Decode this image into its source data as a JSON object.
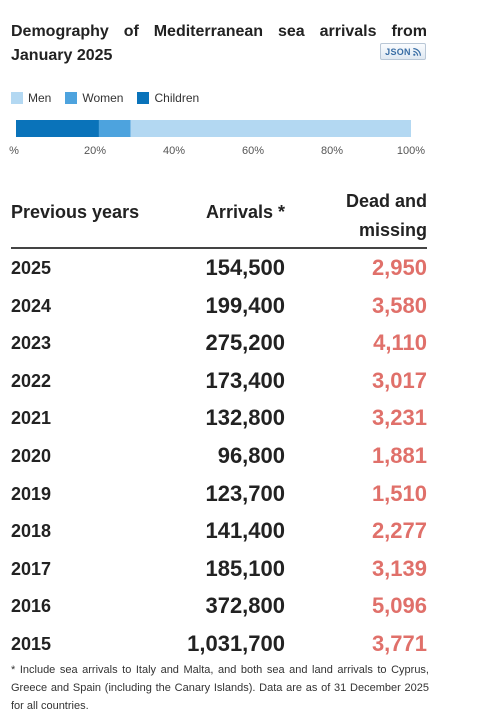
{
  "title": "Demography of Mediterranean sea arrivals from January 2025",
  "json_button_label": "JSON",
  "chart_data": {
    "type": "bar",
    "stacked": true,
    "orientation": "horizontal",
    "series": [
      {
        "name": "Children",
        "color": "#0a73ba",
        "value": 21
      },
      {
        "name": "Women",
        "color": "#4da3de",
        "value": 8
      },
      {
        "name": "Men",
        "color": "#b3d8f2",
        "value": 71
      }
    ],
    "legend": [
      "Men",
      "Women",
      "Children"
    ],
    "legend_placement": "top-left",
    "xlim": [
      0,
      100
    ],
    "ticks": [
      "%",
      "20%",
      "40%",
      "60%",
      "80%",
      "100%"
    ]
  },
  "table": {
    "headers": {
      "years": "Previous years",
      "arrivals": "Arrivals *",
      "dead": "Dead and\nmissing"
    },
    "rows": [
      {
        "year": "2025",
        "arrivals": "154,500",
        "dead": "2,950"
      },
      {
        "year": "2024",
        "arrivals": "199,400",
        "dead": "3,580"
      },
      {
        "year": "2023",
        "arrivals": "275,200",
        "dead": "4,110"
      },
      {
        "year": "2022",
        "arrivals": "173,400",
        "dead": "3,017"
      },
      {
        "year": "2021",
        "arrivals": "132,800",
        "dead": "3,231"
      },
      {
        "year": "2020",
        "arrivals": "96,800",
        "dead": "1,881"
      },
      {
        "year": "2019",
        "arrivals": "123,700",
        "dead": "1,510"
      },
      {
        "year": "2018",
        "arrivals": "141,400",
        "dead": "2,277"
      },
      {
        "year": "2017",
        "arrivals": "185,100",
        "dead": "3,139"
      },
      {
        "year": "2016",
        "arrivals": "372,800",
        "dead": "5,096"
      },
      {
        "year": "2015",
        "arrivals": "1,031,700",
        "dead": "3,771"
      }
    ]
  },
  "footnote": "* Include sea arrivals to Italy and Malta, and both sea and land arrivals to Cyprus, Greece and Spain (including the Canary Islands). Data are as of 31 December 2025 for all countries."
}
